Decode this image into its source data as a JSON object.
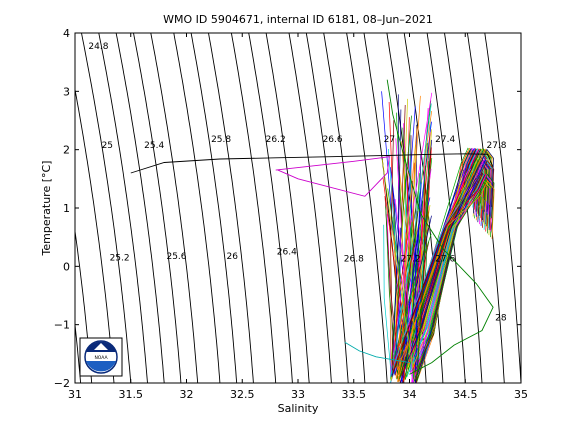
{
  "chart_data": {
    "type": "scatter",
    "title": "WMO ID 5904671, internal ID 6181, 08–Jun–2021",
    "xlabel": "Salinity",
    "ylabel": "Temperature [°C]",
    "xlim": [
      31,
      35
    ],
    "ylim": [
      -2,
      4
    ],
    "xticks": [
      "31",
      "31.5",
      "32",
      "32.5",
      "33",
      "33.5",
      "34",
      "34.5",
      "35"
    ],
    "yticks": [
      "−2",
      "−1",
      "0",
      "1",
      "2",
      "3",
      "4"
    ],
    "grid": false,
    "isopycnal_labels": [
      {
        "text": "24.8",
        "s": 31.21,
        "t": 3.73
      },
      {
        "text": "25",
        "s": 31.29,
        "t": 2.03
      },
      {
        "text": "25.4",
        "s": 31.71,
        "t": 2.03
      },
      {
        "text": "25.8",
        "s": 32.31,
        "t": 2.13
      },
      {
        "text": "26.2",
        "s": 32.8,
        "t": 2.13
      },
      {
        "text": "26.6",
        "s": 33.31,
        "t": 2.13
      },
      {
        "text": "27",
        "s": 33.82,
        "t": 2.13
      },
      {
        "text": "27.4",
        "s": 34.32,
        "t": 2.13
      },
      {
        "text": "27.8",
        "s": 34.78,
        "t": 2.03
      },
      {
        "text": "25.2",
        "s": 31.4,
        "t": 0.1
      },
      {
        "text": "25.6",
        "s": 31.91,
        "t": 0.13
      },
      {
        "text": "26",
        "s": 32.41,
        "t": 0.13
      },
      {
        "text": "26.4",
        "s": 32.9,
        "t": 0.2
      },
      {
        "text": "26.8",
        "s": 33.5,
        "t": 0.08
      },
      {
        "text": "27.2",
        "s": 34.01,
        "t": 0.08
      },
      {
        "text": "27.6",
        "s": 34.32,
        "t": 0.08
      },
      {
        "text": "28",
        "s": 34.82,
        "t": -0.93
      }
    ],
    "isopycnal_base_salinity": [
      30.9,
      31.05,
      31.15,
      31.35,
      31.5,
      31.65,
      31.8,
      31.95,
      32.1,
      32.3,
      32.45,
      32.6,
      32.8,
      32.95,
      33.1,
      33.3,
      33.45,
      33.6,
      33.8,
      33.95,
      34.15,
      34.3,
      34.5,
      34.65,
      34.85,
      35.0
    ],
    "series": [
      {
        "color": "#000000",
        "points": [
          [
            31.5,
            1.6
          ],
          [
            31.8,
            1.78
          ],
          [
            32.3,
            1.84
          ],
          [
            32.8,
            1.86
          ],
          [
            33.3,
            1.88
          ],
          [
            33.8,
            1.9
          ],
          [
            34.2,
            1.92
          ],
          [
            34.5,
            1.93
          ],
          [
            34.7,
            1.92
          ],
          [
            34.75,
            1.7
          ]
        ]
      },
      {
        "color": "#cc00cc",
        "points": [
          [
            32.8,
            1.65
          ],
          [
            33.5,
            1.8
          ],
          [
            33.82,
            1.88
          ],
          [
            33.8,
            1.6
          ],
          [
            33.6,
            1.2
          ],
          [
            33.0,
            1.5
          ],
          [
            32.82,
            1.65
          ]
        ]
      },
      {
        "color": "#008000",
        "points": [
          [
            33.8,
            3.2
          ],
          [
            33.85,
            2.6
          ],
          [
            33.95,
            1.9
          ],
          [
            34.1,
            0.9
          ],
          [
            34.3,
            0.3
          ],
          [
            34.6,
            -0.3
          ],
          [
            34.75,
            -0.7
          ],
          [
            34.65,
            -1.1
          ],
          [
            34.4,
            -1.35
          ],
          [
            34.2,
            -1.65
          ],
          [
            34.0,
            -1.85
          ]
        ]
      },
      {
        "color": "#00aaaa",
        "points": [
          [
            33.42,
            -1.3
          ],
          [
            33.55,
            -1.45
          ],
          [
            33.7,
            -1.55
          ],
          [
            33.85,
            -1.6
          ],
          [
            34.0,
            -1.65
          ]
        ]
      }
    ],
    "profile_bundle": {
      "description": "Dense V-shaped bundle of float profiles",
      "colors": [
        "#0000ff",
        "#ff0000",
        "#00aa00",
        "#ff00ff",
        "#00cccc",
        "#cccc00",
        "#000080",
        "#800000",
        "#008000",
        "#ff8000"
      ],
      "cold_end": [
        34.05,
        -1.8
      ],
      "surface_spread": [
        [
          33.75,
          3.0
        ],
        [
          34.15,
          0.2
        ]
      ],
      "warm_peak": [
        [
          34.55,
          1.9
        ],
        [
          34.7,
          2.05
        ]
      ]
    },
    "logo": "noaa-logo"
  }
}
